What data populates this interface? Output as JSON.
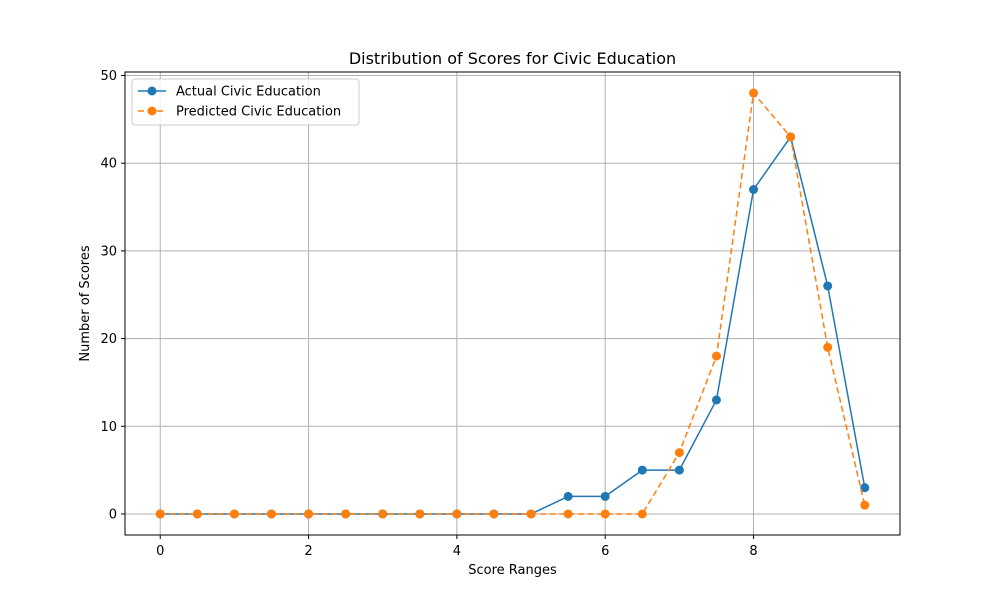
{
  "chart_data": {
    "type": "line",
    "title": "Distribution of Scores for Civic Education",
    "xlabel": "Score Ranges",
    "ylabel": "Number of Scores",
    "x": [
      0,
      0.5,
      1,
      1.5,
      2,
      2.5,
      3,
      3.5,
      4,
      4.5,
      5,
      5.5,
      6,
      6.5,
      7,
      7.5,
      8,
      8.5,
      9,
      9.5
    ],
    "xlim": [
      -0.475,
      9.975
    ],
    "ylim": [
      -2.4,
      50.4
    ],
    "xticks": [
      0,
      2,
      4,
      6,
      8
    ],
    "yticks": [
      0,
      10,
      20,
      30,
      40,
      50
    ],
    "grid": true,
    "legend_position": "upper-left",
    "series": [
      {
        "name": "Actual Civic Education",
        "color": "#1f77b4",
        "line_style": "solid",
        "marker": "circle",
        "values": [
          0,
          0,
          0,
          0,
          0,
          0,
          0,
          0,
          0,
          0,
          0,
          2,
          2,
          5,
          5,
          13,
          37,
          43,
          26,
          3
        ]
      },
      {
        "name": "Predicted Civic Education",
        "color": "#ff7f0e",
        "line_style": "dashed",
        "marker": "circle",
        "values": [
          0,
          0,
          0,
          0,
          0,
          0,
          0,
          0,
          0,
          0,
          0,
          0,
          0,
          0,
          7,
          18,
          48,
          43,
          19,
          1
        ]
      }
    ]
  }
}
